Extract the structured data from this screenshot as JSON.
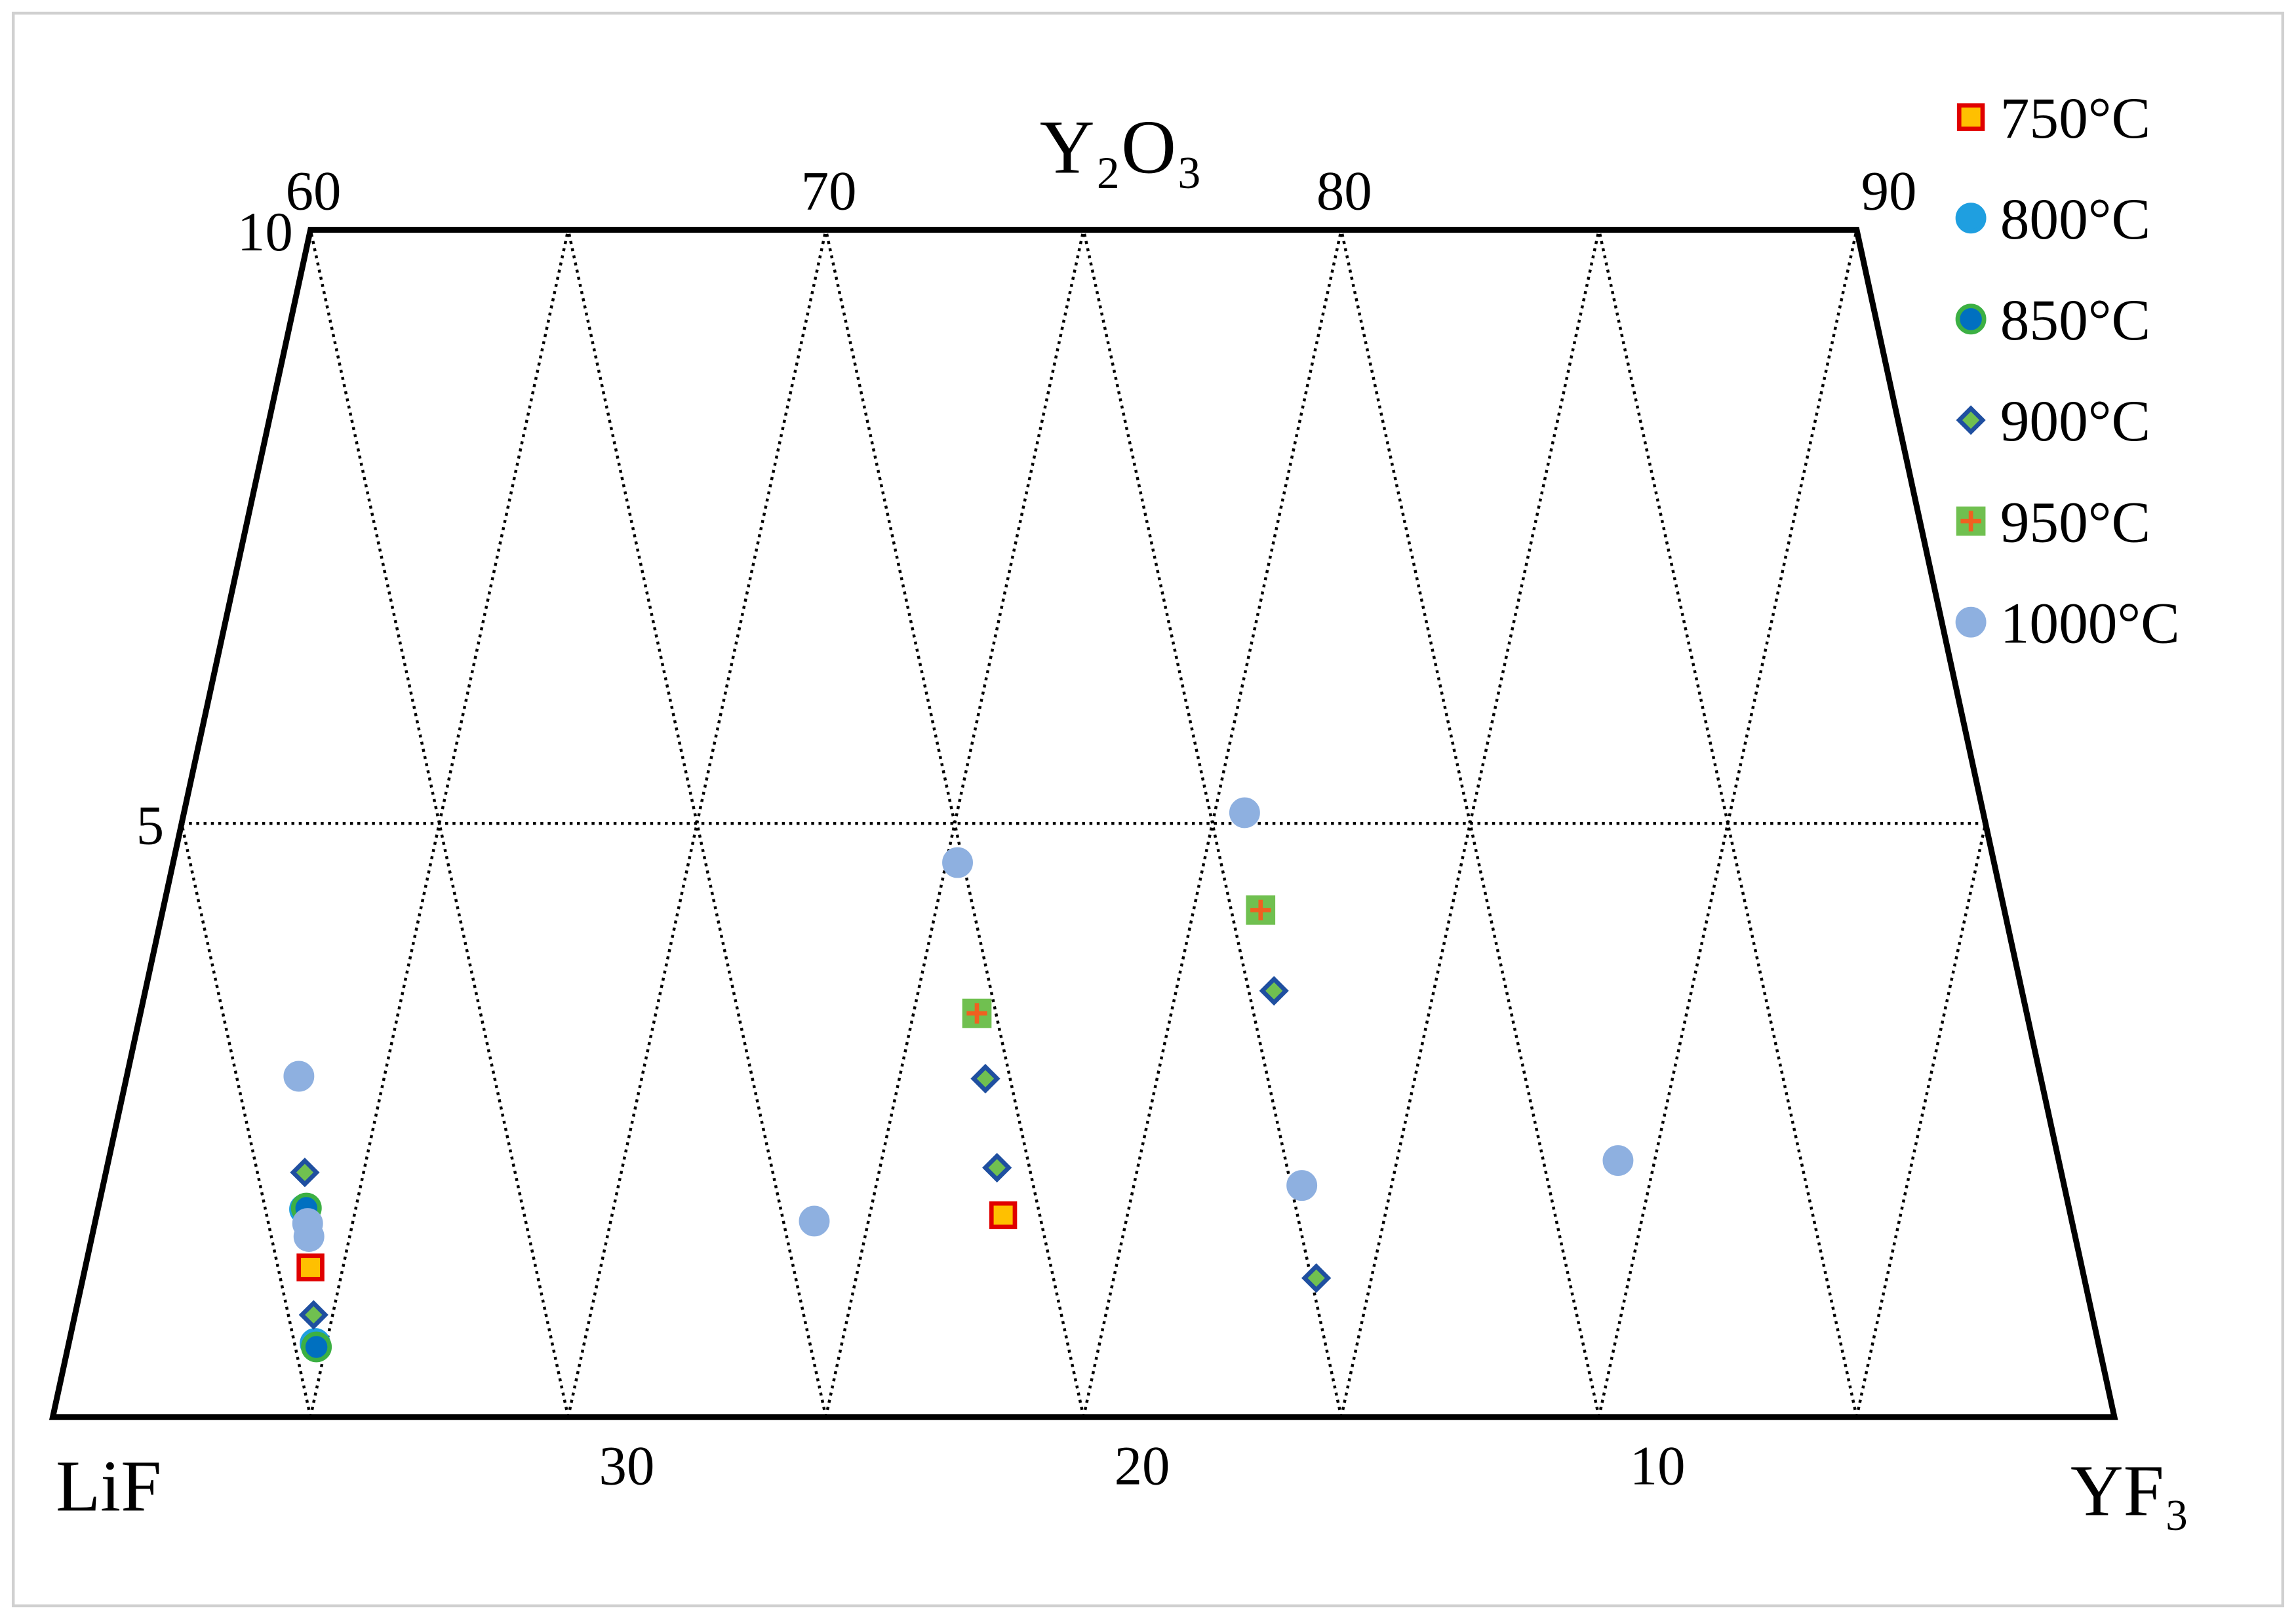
{
  "chart_data": {
    "type": "ternary",
    "axis_labels": {
      "left": "LiF",
      "right": "YF₃",
      "top": "Y₂O₃"
    },
    "yticks": [
      5,
      10
    ],
    "xticks": [
      30,
      20,
      10
    ],
    "x2ticks": [
      60,
      70,
      80,
      90
    ],
    "ylim": [
      0,
      10
    ],
    "xlim": [
      40,
      0
    ],
    "grid": true,
    "legend": "top-right",
    "series": [
      {
        "name": "750°C",
        "marker": "square",
        "color": "#ffc000",
        "edge": "#e00000",
        "x": [
          34.37,
          20.71
        ],
        "values": [
          1.26,
          1.7
        ]
      },
      {
        "name": "800°C",
        "marker": "circle",
        "color": "#1f9fe0",
        "edge": "#1f9fe0",
        "x": [
          34.6,
          34.24
        ],
        "values": [
          0.62,
          1.75
        ]
      },
      {
        "name": "850°C",
        "marker": "circle",
        "color": "#0070c0",
        "edge": "#3cb043",
        "x": [
          34.59,
          34.2
        ],
        "values": [
          0.59,
          1.76
        ]
      },
      {
        "name": "900°C",
        "marker": "diamond",
        "color": "#70c050",
        "edge": "#1f4fa0",
        "x": [
          34.08,
          34.51,
          20.48,
          14.51,
          14.9,
          20.63
        ],
        "values": [
          2.06,
          0.86,
          2.85,
          3.59,
          1.17,
          2.1
        ]
      },
      {
        "name": "950°C",
        "marker": "plus",
        "color": "#70c050",
        "edge": "#f06020",
        "x": [
          20.37,
          14.43
        ],
        "values": [
          3.4,
          4.27
        ]
      },
      {
        "name": "1000°C",
        "marker": "circle",
        "color": "#8eb0e0",
        "edge": "#8eb0e0",
        "x": [
          33.79,
          34.24,
          34.27,
          24.4,
          20.11,
          14.33,
          14.79,
          8.55
        ],
        "values": [
          2.87,
          1.63,
          1.52,
          1.65,
          4.67,
          5.09,
          1.95,
          2.16
        ]
      }
    ]
  }
}
